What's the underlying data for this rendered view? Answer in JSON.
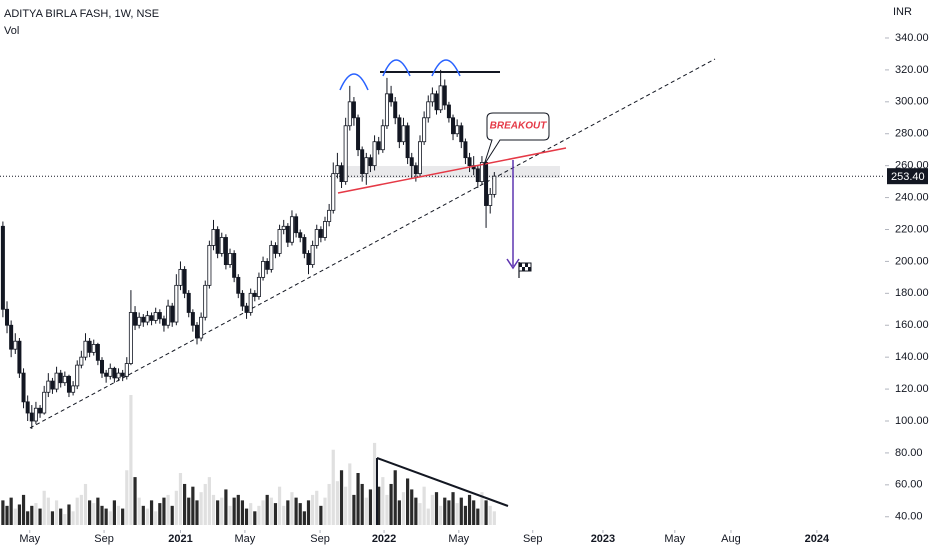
{
  "chart_data": {
    "type": "candlestick",
    "title": "ADITYA BIRLA FASH, 1W, NSE",
    "subtitle": "Vol",
    "currency": "INR",
    "annotation": "BREAKOUT",
    "up_color": "#ffffff",
    "down_color": "#131722",
    "volume_up_color": "#e0e0e0",
    "volume_down_color": "#2a2a2a",
    "ylim": [
      31.7,
      363.8
    ],
    "yticks": [
      {
        "value": 40,
        "label": "40.00"
      },
      {
        "value": 60,
        "label": "60.00"
      },
      {
        "value": 80,
        "label": "80.00"
      },
      {
        "value": 100,
        "label": "100.00"
      },
      {
        "value": 120,
        "label": "120.00"
      },
      {
        "value": 140,
        "label": "140.00"
      },
      {
        "value": 160,
        "label": "160.00"
      },
      {
        "value": 180,
        "label": "180.00"
      },
      {
        "value": 200,
        "label": "200.00"
      },
      {
        "value": 220,
        "label": "220.00"
      },
      {
        "value": 240,
        "label": "240.00"
      },
      {
        "value": 260,
        "label": "260.00"
      },
      {
        "value": 280,
        "label": "280.00"
      },
      {
        "value": 300,
        "label": "300.00"
      },
      {
        "value": 320,
        "label": "320.00"
      },
      {
        "value": 340,
        "label": "340.00"
      }
    ],
    "last_price": {
      "value": 253.4,
      "label": "253.40"
    },
    "xlim": [
      -0.7,
      213.6
    ],
    "xticks": [
      {
        "value": 6.5,
        "label": "May"
      },
      {
        "value": 24.5,
        "label": "Sep"
      },
      {
        "value": 43,
        "label": "2021"
      },
      {
        "value": 58.6,
        "label": "May"
      },
      {
        "value": 76.8,
        "label": "Sep"
      },
      {
        "value": 92.3,
        "label": "2022"
      },
      {
        "value": 110.4,
        "label": "May"
      },
      {
        "value": 128.3,
        "label": "Sep"
      },
      {
        "value": 145.3,
        "label": "2023"
      },
      {
        "value": 162.7,
        "label": "May"
      },
      {
        "value": 176.3,
        "label": "Aug"
      },
      {
        "value": 197.1,
        "label": "2024"
      }
    ],
    "candles": [
      [
        222,
        225,
        165,
        170
      ],
      [
        170,
        175,
        155,
        160
      ],
      [
        160,
        163,
        140,
        145
      ],
      [
        145,
        155,
        142,
        150
      ],
      [
        150,
        152,
        127,
        130
      ],
      [
        130,
        133,
        108,
        112
      ],
      [
        112,
        116,
        100,
        105
      ],
      [
        105,
        110,
        95,
        100
      ],
      [
        100,
        112,
        98,
        108
      ],
      [
        108,
        110,
        102,
        105
      ],
      [
        105,
        122,
        104,
        118
      ],
      [
        118,
        130,
        115,
        125
      ],
      [
        125,
        127,
        117,
        120
      ],
      [
        120,
        134,
        118,
        130
      ],
      [
        130,
        132,
        121,
        124
      ],
      [
        124,
        131,
        122,
        128
      ],
      [
        128,
        129,
        115,
        118
      ],
      [
        118,
        125,
        116,
        122
      ],
      [
        122,
        138,
        120,
        135
      ],
      [
        135,
        144,
        133,
        140
      ],
      [
        140,
        155,
        138,
        150
      ],
      [
        150,
        152,
        140,
        143
      ],
      [
        143,
        151,
        141,
        148
      ],
      [
        148,
        149,
        135,
        138
      ],
      [
        138,
        140,
        127,
        130
      ],
      [
        130,
        132,
        124,
        128
      ],
      [
        128,
        136,
        126,
        133
      ],
      [
        133,
        134,
        124,
        127
      ],
      [
        127,
        133,
        125,
        130
      ],
      [
        130,
        132,
        125,
        128
      ],
      [
        128,
        140,
        126,
        136
      ],
      [
        136,
        182,
        135,
        168
      ],
      [
        168,
        172,
        157,
        160
      ],
      [
        160,
        168,
        158,
        165
      ],
      [
        165,
        167,
        159,
        162
      ],
      [
        162,
        169,
        160,
        166
      ],
      [
        166,
        168,
        160,
        163
      ],
      [
        163,
        171,
        161,
        168
      ],
      [
        168,
        170,
        161,
        164
      ],
      [
        164,
        166,
        156,
        160
      ],
      [
        160,
        176,
        158,
        172
      ],
      [
        172,
        174,
        159,
        162
      ],
      [
        162,
        192,
        160,
        185
      ],
      [
        185,
        200,
        182,
        195
      ],
      [
        195,
        197,
        177,
        180
      ],
      [
        180,
        182,
        165,
        168
      ],
      [
        168,
        170,
        156,
        160
      ],
      [
        160,
        162,
        148,
        152
      ],
      [
        152,
        168,
        150,
        165
      ],
      [
        165,
        188,
        163,
        185
      ],
      [
        185,
        213,
        183,
        210
      ],
      [
        210,
        226,
        207,
        220
      ],
      [
        220,
        222,
        202,
        205
      ],
      [
        205,
        218,
        203,
        215
      ],
      [
        215,
        217,
        195,
        198
      ],
      [
        198,
        208,
        196,
        205
      ],
      [
        205,
        207,
        187,
        190
      ],
      [
        190,
        192,
        177,
        180
      ],
      [
        180,
        182,
        169,
        172
      ],
      [
        172,
        174,
        164,
        168
      ],
      [
        168,
        183,
        166,
        180
      ],
      [
        180,
        182,
        175,
        178
      ],
      [
        178,
        193,
        176,
        190
      ],
      [
        190,
        203,
        188,
        200
      ],
      [
        200,
        202,
        192,
        195
      ],
      [
        195,
        213,
        193,
        210
      ],
      [
        210,
        212,
        202,
        205
      ],
      [
        205,
        223,
        203,
        220
      ],
      [
        220,
        226,
        217,
        222
      ],
      [
        222,
        224,
        209,
        212
      ],
      [
        212,
        232,
        210,
        228
      ],
      [
        228,
        230,
        215,
        218
      ],
      [
        218,
        220,
        212,
        215
      ],
      [
        215,
        217,
        202,
        205
      ],
      [
        205,
        207,
        192,
        198
      ],
      [
        198,
        213,
        196,
        210
      ],
      [
        210,
        223,
        208,
        220
      ],
      [
        220,
        222,
        212,
        215
      ],
      [
        215,
        228,
        213,
        225
      ],
      [
        225,
        236,
        222,
        232
      ],
      [
        232,
        262,
        230,
        255
      ],
      [
        255,
        268,
        252,
        260
      ],
      [
        260,
        262,
        246,
        250
      ],
      [
        250,
        290,
        248,
        285
      ],
      [
        285,
        310,
        282,
        300
      ],
      [
        300,
        303,
        285,
        290
      ],
      [
        290,
        292,
        266,
        270
      ],
      [
        270,
        272,
        250,
        255
      ],
      [
        255,
        268,
        248,
        265
      ],
      [
        265,
        267,
        256,
        260
      ],
      [
        260,
        279,
        257,
        275
      ],
      [
        275,
        278,
        267,
        270
      ],
      [
        270,
        289,
        268,
        285
      ],
      [
        285,
        315,
        283,
        305
      ],
      [
        305,
        310,
        297,
        300
      ],
      [
        300,
        303,
        286,
        290
      ],
      [
        290,
        292,
        271,
        275
      ],
      [
        275,
        290,
        273,
        285
      ],
      [
        285,
        287,
        261,
        265
      ],
      [
        265,
        268,
        252,
        260
      ],
      [
        260,
        262,
        250,
        255
      ],
      [
        255,
        279,
        253,
        275
      ],
      [
        275,
        294,
        273,
        290
      ],
      [
        290,
        304,
        287,
        300
      ],
      [
        300,
        309,
        297,
        305
      ],
      [
        305,
        307,
        292,
        295
      ],
      [
        295,
        320,
        293,
        310
      ],
      [
        310,
        314,
        295,
        298
      ],
      [
        298,
        300,
        287,
        290
      ],
      [
        290,
        292,
        276,
        280
      ],
      [
        280,
        289,
        278,
        285
      ],
      [
        285,
        287,
        271,
        275
      ],
      [
        275,
        277,
        261,
        265
      ],
      [
        265,
        268,
        256,
        260
      ],
      [
        260,
        266,
        254,
        258
      ],
      [
        258,
        260,
        246,
        250
      ],
      [
        250,
        266,
        248,
        262
      ],
      [
        262,
        264,
        221,
        235
      ],
      [
        235,
        246,
        230,
        242
      ],
      [
        242,
        256,
        240,
        253.4
      ]
    ],
    "volumes": [
      18,
      14,
      20,
      12,
      15,
      22,
      10,
      14,
      16,
      12,
      25,
      20,
      10,
      18,
      12,
      8,
      15,
      10,
      20,
      22,
      30,
      18,
      16,
      20,
      14,
      12,
      10,
      18,
      14,
      12,
      40,
      95,
      35,
      20,
      14,
      12,
      18,
      10,
      16,
      20,
      22,
      14,
      25,
      38,
      30,
      20,
      28,
      18,
      24,
      30,
      35,
      22,
      18,
      20,
      26,
      14,
      20,
      22,
      18,
      12,
      16,
      10,
      14,
      18,
      22,
      20,
      16,
      28,
      14,
      18,
      24,
      20,
      16,
      10,
      18,
      22,
      25,
      14,
      20,
      30,
      55,
      32,
      40,
      28,
      45,
      22,
      38,
      30,
      20,
      26,
      60,
      28,
      35,
      22,
      30,
      40,
      18,
      24,
      34,
      26,
      20,
      16,
      28,
      12,
      22,
      24,
      14,
      20,
      18,
      24,
      16,
      20,
      14,
      22,
      18,
      12,
      24,
      18,
      14,
      10
    ]
  }
}
